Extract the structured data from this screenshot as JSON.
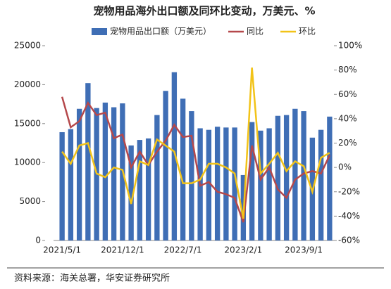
{
  "chart_data": {
    "type": "bar-line",
    "title": "宠物用品海外出口额及同环比变动，万美元、%",
    "source": "资料来源：海关总署，华安证券研究所",
    "categories": [
      "2021/5/1",
      null,
      null,
      null,
      null,
      null,
      null,
      "2021/12/1",
      null,
      null,
      null,
      null,
      null,
      null,
      "2022/7/1",
      null,
      null,
      null,
      null,
      null,
      null,
      "2023/2/1",
      null,
      null,
      null,
      null,
      null,
      null,
      "2023/9/1",
      null,
      null,
      null
    ],
    "series": [
      {
        "name": "宠物用品出口额（万美元）",
        "type": "bar",
        "color": "#3f6eb5",
        "values": [
          13900,
          14300,
          16900,
          20200,
          17000,
          17700,
          17100,
          17600,
          12200,
          12900,
          13100,
          16100,
          19200,
          21600,
          18200,
          16600,
          14400,
          14200,
          14600,
          14500,
          14500,
          8400,
          15200,
          14100,
          14400,
          16000,
          16100,
          16900,
          16600,
          13200,
          14200,
          15900
        ]
      },
      {
        "name": "同比",
        "type": "line",
        "axis": "y2",
        "color": "#b5484b",
        "values": [
          58,
          33,
          38,
          53,
          43,
          45,
          24,
          27,
          0,
          13,
          2,
          13,
          22,
          35,
          25,
          26,
          -15,
          -12,
          -20,
          -22,
          -25,
          -45,
          18,
          -10,
          0,
          -18,
          -25,
          -10,
          -5,
          -3,
          -5,
          10
        ]
      },
      {
        "name": "环比",
        "type": "line",
        "axis": "y2",
        "color": "#f2c318",
        "values": [
          13,
          3,
          18,
          20,
          -5,
          -8,
          0,
          -2,
          -30,
          5,
          2,
          23,
          18,
          13,
          -13,
          -13,
          -10,
          3,
          3,
          0,
          -5,
          -42,
          82,
          -5,
          3,
          12,
          -3,
          5,
          1,
          -20,
          8,
          12
        ]
      }
    ],
    "ylim": [
      0,
      25000
    ],
    "yticks": [
      0,
      5000,
      10000,
      15000,
      20000,
      25000
    ],
    "y2lim": [
      -60,
      100
    ],
    "y2ticks": [
      {
        "value": -60,
        "label": "-60%"
      },
      {
        "value": -40,
        "label": "-40%"
      },
      {
        "value": -20,
        "label": "-20%"
      },
      {
        "value": 0,
        "label": "0%"
      },
      {
        "value": 20,
        "label": "20%"
      },
      {
        "value": 40,
        "label": "40%"
      },
      {
        "value": 60,
        "label": "60%"
      },
      {
        "value": 80,
        "label": "80%"
      },
      {
        "value": 100,
        "label": "100%"
      }
    ]
  }
}
